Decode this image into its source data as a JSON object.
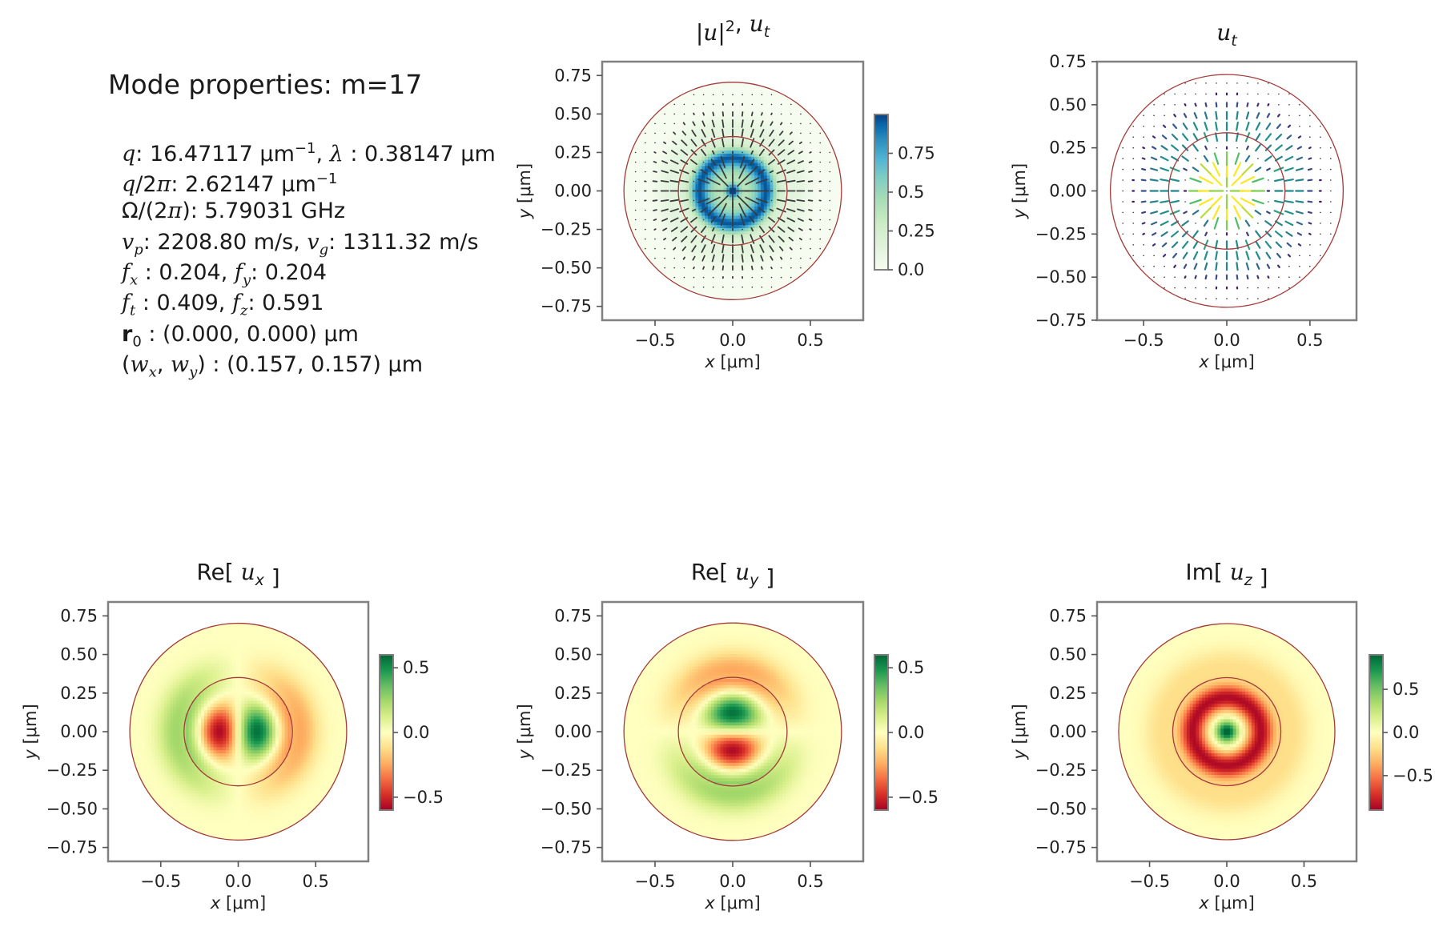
{
  "info": {
    "title": "Mode properties: m=17",
    "q_value": "16.47117",
    "lambda_value": "0.38147",
    "q_over_2pi_value": "2.62147",
    "omega_value": "5.79031",
    "vp_value": "2208.80",
    "vg_value": "1311.32",
    "fx_value": "0.204",
    "fy_value": "0.204",
    "ft_value": "0.409",
    "fz_value": "0.591",
    "r0_value": "(0.000, 0.000)",
    "w_value": "(0.157, 0.157)",
    "unit_um": "μm",
    "unit_inv_um": "μm",
    "unit_ghz": "GHz",
    "unit_ms": "m/s"
  },
  "chart_data": [
    {
      "type": "heatmap",
      "title": "|u|², u_t",
      "xlabel": "x [μm]",
      "ylabel": "y [μm]",
      "xlim": [
        -0.84,
        0.84
      ],
      "ylim": [
        -0.84,
        0.84
      ],
      "x_ticks": [
        -0.5,
        0.0,
        0.5
      ],
      "y_ticks": [
        -0.75,
        -0.5,
        -0.25,
        0.0,
        0.25,
        0.5,
        0.75
      ],
      "core_radius": 0.35,
      "cladding_radius": 0.7,
      "colormap": "green-blue",
      "colorbar_ticks": [
        0.0,
        0.25,
        0.5,
        0.75
      ],
      "colorbar_range": [
        0,
        1
      ],
      "overlay": "transverse-arrows"
    },
    {
      "type": "quiver",
      "title": "u_t",
      "xlabel": "x [μm]",
      "ylabel": "y [μm]",
      "xlim": [
        -0.78,
        0.78
      ],
      "ylim": [
        -0.75,
        0.75
      ],
      "x_ticks": [
        -0.5,
        0.0,
        0.5
      ],
      "y_ticks": [
        -0.75,
        -0.5,
        -0.25,
        0.0,
        0.25,
        0.5,
        0.75
      ],
      "core_radius": 0.35,
      "cladding_radius": 0.7,
      "colormap": "viridis"
    },
    {
      "type": "heatmap",
      "title": "Re[ u_x ]",
      "xlabel": "x [μm]",
      "ylabel": "y [μm]",
      "xlim": [
        -0.84,
        0.84
      ],
      "ylim": [
        -0.84,
        0.84
      ],
      "x_ticks": [
        -0.5,
        0.0,
        0.5
      ],
      "y_ticks": [
        -0.75,
        -0.5,
        -0.25,
        0.0,
        0.25,
        0.5,
        0.75
      ],
      "core_radius": 0.35,
      "cladding_radius": 0.7,
      "colormap": "RdYlGn",
      "colorbar_ticks": [
        -0.5,
        0.0,
        0.5
      ],
      "colorbar_range": [
        -0.6,
        0.6
      ],
      "pattern": "ux"
    },
    {
      "type": "heatmap",
      "title": "Re[ u_y ]",
      "xlabel": "x [μm]",
      "ylabel": "y [μm]",
      "xlim": [
        -0.84,
        0.84
      ],
      "ylim": [
        -0.84,
        0.84
      ],
      "x_ticks": [
        -0.5,
        0.0,
        0.5
      ],
      "y_ticks": [
        -0.75,
        -0.5,
        -0.25,
        0.0,
        0.25,
        0.5,
        0.75
      ],
      "core_radius": 0.35,
      "cladding_radius": 0.7,
      "colormap": "RdYlGn",
      "colorbar_ticks": [
        -0.5,
        0.0,
        0.5
      ],
      "colorbar_range": [
        -0.6,
        0.6
      ],
      "pattern": "uy"
    },
    {
      "type": "heatmap",
      "title": "Im[ u_z ]",
      "xlabel": "x [μm]",
      "ylabel": "y [μm]",
      "xlim": [
        -0.84,
        0.84
      ],
      "ylim": [
        -0.84,
        0.84
      ],
      "x_ticks": [
        -0.5,
        0.0,
        0.5
      ],
      "y_ticks": [
        -0.75,
        -0.5,
        -0.25,
        0.0,
        0.25,
        0.5,
        0.75
      ],
      "core_radius": 0.35,
      "cladding_radius": 0.7,
      "colormap": "RdYlGn",
      "colorbar_ticks": [
        -0.5,
        0.0,
        0.5
      ],
      "colorbar_range": [
        -0.9,
        0.9
      ],
      "pattern": "uz"
    }
  ]
}
